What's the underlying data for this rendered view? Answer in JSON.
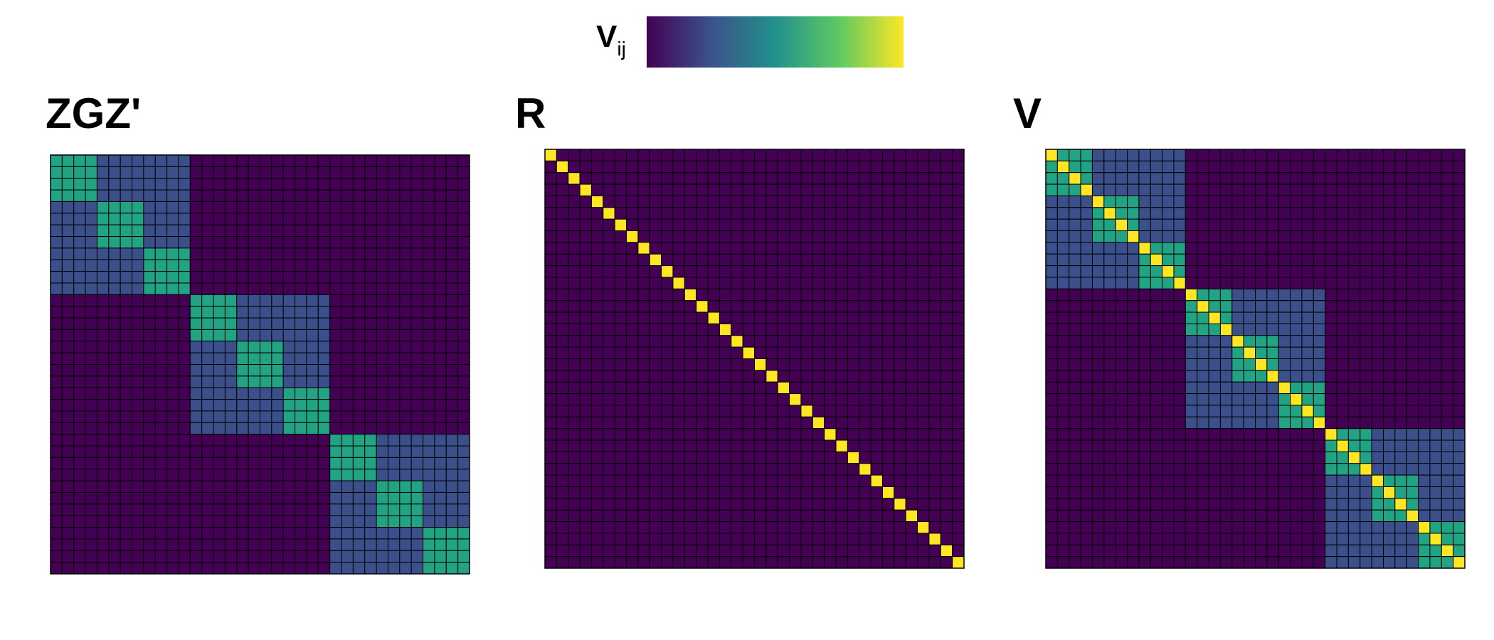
{
  "colorbar": {
    "label_main": "V",
    "label_sub": "ij",
    "colors": [
      "#440154",
      "#3b528b",
      "#21918c",
      "#5ec962",
      "#fde725"
    ]
  },
  "chart_data": [
    {
      "type": "heatmap",
      "title": "ZGZ'",
      "size": 36,
      "structure": "block",
      "outer_block_size": 12,
      "inner_block_size": 4,
      "levels": {
        "outside": 0,
        "same_outer_block": 1,
        "same_inner_block": 2,
        "diagonal": 2
      },
      "level_colors": [
        "#440154",
        "#3b4f8a",
        "#22a384",
        "#fde725"
      ]
    },
    {
      "type": "heatmap",
      "title": "R",
      "size": 36,
      "structure": "diagonal",
      "levels": {
        "outside": 0,
        "diagonal": 3
      },
      "level_colors": [
        "#440154",
        "#3b4f8a",
        "#22a384",
        "#fde725"
      ]
    },
    {
      "type": "heatmap",
      "title": "V",
      "size": 36,
      "structure": "block",
      "outer_block_size": 12,
      "inner_block_size": 4,
      "levels": {
        "outside": 0,
        "same_outer_block": 1,
        "same_inner_block": 2,
        "diagonal": 3
      },
      "level_colors": [
        "#440154",
        "#3b4f8a",
        "#22a384",
        "#fde725"
      ]
    }
  ]
}
